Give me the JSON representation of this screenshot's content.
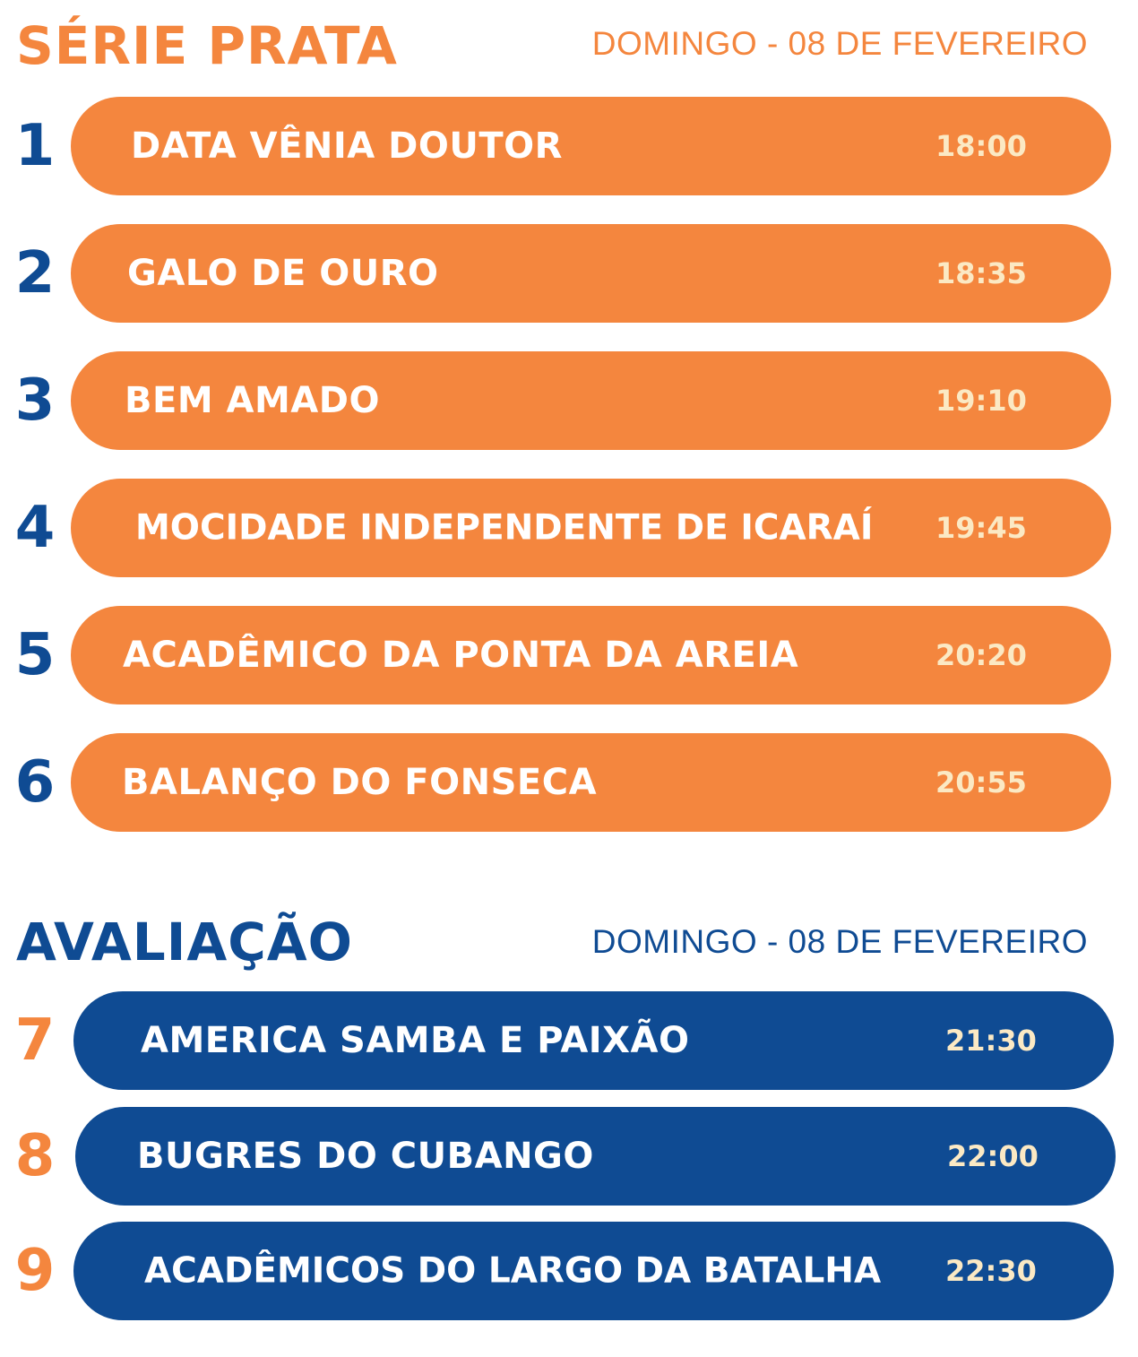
{
  "colors": {
    "orange": "#f4863e",
    "blue": "#0f4b93",
    "cream": "#fbe9c4",
    "white": "#ffffff"
  },
  "serie_prata": {
    "title": "SÉRIE PRATA",
    "date": "DOMINGO - 08 DE FEVEREIRO",
    "entries": [
      {
        "number": "1",
        "name": "DATA VÊNIA DOUTOR",
        "time": "18:00"
      },
      {
        "number": "2",
        "name": "GALO DE OURO",
        "time": "18:35"
      },
      {
        "number": "3",
        "name": "BEM AMADO",
        "time": "19:10"
      },
      {
        "number": "4",
        "name": "MOCIDADE INDEPENDENTE DE ICARAÍ",
        "time": "19:45"
      },
      {
        "number": "5",
        "name": "ACADÊMICO DA PONTA DA AREIA",
        "time": "20:20"
      },
      {
        "number": "6",
        "name": "BALANÇO DO FONSECA",
        "time": "20:55"
      }
    ]
  },
  "avaliacao": {
    "title": "AVALIAÇÃO",
    "date": "DOMINGO - 08 DE FEVEREIRO",
    "entries": [
      {
        "number": "7",
        "name": "AMERICA SAMBA E PAIXÃO",
        "time": "21:30"
      },
      {
        "number": "8",
        "name": "BUGRES DO CUBANGO",
        "time": "22:00"
      },
      {
        "number": "9",
        "name": "ACADÊMICOS DO LARGO DA BATALHA",
        "time": "22:30"
      }
    ]
  }
}
